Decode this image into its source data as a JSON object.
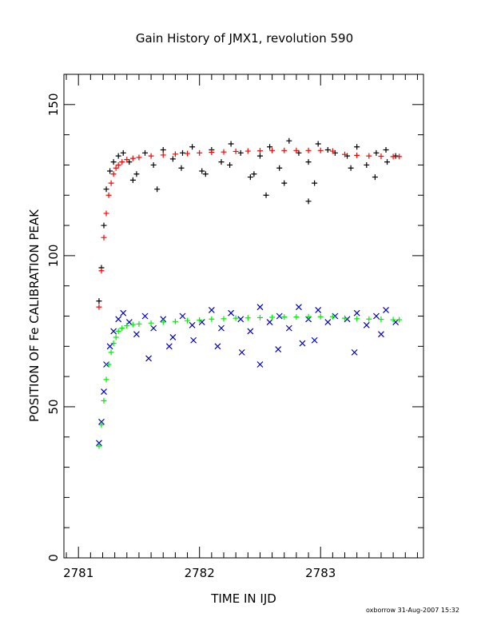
{
  "chart_data": {
    "type": "scatter",
    "title": "Gain History of JMX1, revolution 590",
    "xlabel": "TIME IN IJD",
    "ylabel": "POSITION OF Fe CALIBRATION PEAK",
    "xlim": [
      2780.88,
      2783.85
    ],
    "ylim": [
      0,
      160
    ],
    "x_ticks": [
      2781,
      2782,
      2783
    ],
    "x_tick_labels": [
      "2781",
      "2782",
      "2783"
    ],
    "y_ticks": [
      0,
      50,
      100,
      150
    ],
    "y_tick_labels": [
      "0",
      "50",
      "100",
      "150"
    ],
    "grid": false,
    "legend": "none",
    "series": [
      {
        "marker": "+",
        "color": "#000000",
        "x": [
          2781.17,
          2781.19,
          2781.21,
          2781.23,
          2781.26,
          2781.29,
          2781.33,
          2781.37,
          2781.42,
          2781.48,
          2781.55,
          2781.62,
          2781.7,
          2781.78,
          2781.86,
          2781.94,
          2782.02,
          2782.1,
          2782.18,
          2782.26,
          2782.34,
          2782.42,
          2782.5,
          2782.58,
          2782.66,
          2782.74,
          2782.82,
          2782.9,
          2782.98,
          2783.06,
          2783.12,
          2783.22,
          2783.3,
          2783.38,
          2783.46,
          2783.54,
          2783.62,
          2781.45,
          2781.65,
          2781.85,
          2782.05,
          2782.25,
          2782.45,
          2782.55,
          2782.7,
          2782.9,
          2782.95,
          2783.25,
          2783.45,
          2783.55
        ],
        "y": [
          85,
          96,
          110,
          122,
          128,
          131,
          133,
          134,
          131,
          127,
          134,
          130,
          135,
          132,
          134,
          136,
          128,
          135,
          131,
          137,
          134,
          126,
          133,
          136,
          129,
          138,
          134,
          131,
          137,
          135,
          134,
          133,
          136,
          130,
          134,
          135,
          133,
          125,
          122,
          129,
          127,
          130,
          127,
          120,
          124,
          118,
          124,
          129,
          126,
          131
        ]
      },
      {
        "marker": "x",
        "color": "#0000cc",
        "x": [
          2781.17,
          2781.19,
          2781.21,
          2781.23,
          2781.26,
          2781.29,
          2781.33,
          2781.37,
          2781.42,
          2781.48,
          2781.55,
          2781.62,
          2781.7,
          2781.78,
          2781.86,
          2781.94,
          2782.02,
          2782.1,
          2782.18,
          2782.26,
          2782.34,
          2782.42,
          2782.5,
          2782.58,
          2782.66,
          2782.74,
          2782.82,
          2782.9,
          2782.98,
          2783.06,
          2783.12,
          2783.22,
          2783.3,
          2783.38,
          2783.46,
          2783.54,
          2783.62,
          2781.58,
          2781.75,
          2781.95,
          2782.15,
          2782.35,
          2782.5,
          2782.65,
          2782.85,
          2782.95,
          2783.28,
          2783.5
        ],
        "y": [
          38,
          45,
          55,
          64,
          70,
          75,
          79,
          81,
          78,
          74,
          80,
          76,
          79,
          73,
          80,
          77,
          78,
          82,
          76,
          81,
          79,
          75,
          83,
          78,
          80,
          76,
          83,
          79,
          82,
          78,
          80,
          79,
          81,
          77,
          80,
          82,
          78,
          66,
          70,
          72,
          70,
          68,
          64,
          69,
          71,
          72,
          68,
          74
        ]
      },
      {
        "marker": "+",
        "color": "#ff0000",
        "x": [
          2781.17,
          2781.19,
          2781.21,
          2781.23,
          2781.25,
          2781.27,
          2781.29,
          2781.31,
          2781.33,
          2781.36,
          2781.4,
          2781.45,
          2781.5,
          2781.6,
          2781.7,
          2781.8,
          2781.9,
          2782.0,
          2782.1,
          2782.2,
          2782.3,
          2782.4,
          2782.5,
          2782.6,
          2782.7,
          2782.8,
          2782.9,
          2783.0,
          2783.1,
          2783.2,
          2783.3,
          2783.4,
          2783.5,
          2783.6,
          2783.65
        ],
        "y": [
          83,
          95,
          106,
          114,
          120,
          124,
          127,
          129,
          130,
          131,
          131.8,
          132.2,
          132.5,
          133,
          133.3,
          133.6,
          133.8,
          134,
          134.2,
          134.3,
          134.5,
          134.6,
          134.7,
          134.8,
          134.8,
          134.8,
          134.8,
          134.8,
          134.6,
          133.5,
          133.2,
          133,
          132.9,
          132.8,
          132.8
        ]
      },
      {
        "marker": "+",
        "color": "#00ee00",
        "x": [
          2781.17,
          2781.19,
          2781.21,
          2781.23,
          2781.25,
          2781.27,
          2781.29,
          2781.31,
          2781.33,
          2781.36,
          2781.4,
          2781.45,
          2781.5,
          2781.6,
          2781.7,
          2781.8,
          2781.9,
          2782.0,
          2782.1,
          2782.2,
          2782.3,
          2782.4,
          2782.5,
          2782.6,
          2782.7,
          2782.8,
          2782.9,
          2783.0,
          2783.1,
          2783.2,
          2783.3,
          2783.4,
          2783.5,
          2783.6,
          2783.65
        ],
        "y": [
          37,
          44,
          52,
          59,
          64,
          68,
          71,
          73,
          75,
          76,
          76.8,
          77.2,
          77.4,
          77.7,
          78,
          78.2,
          78.5,
          78.7,
          79,
          79.1,
          79.3,
          79.4,
          79.5,
          79.6,
          79.7,
          79.7,
          79.8,
          79.8,
          79.8,
          79.3,
          79.1,
          79,
          78.9,
          78.8,
          78.8
        ]
      }
    ]
  },
  "footer": {
    "text": "oxborrow 31-Aug-2007 15:32"
  }
}
